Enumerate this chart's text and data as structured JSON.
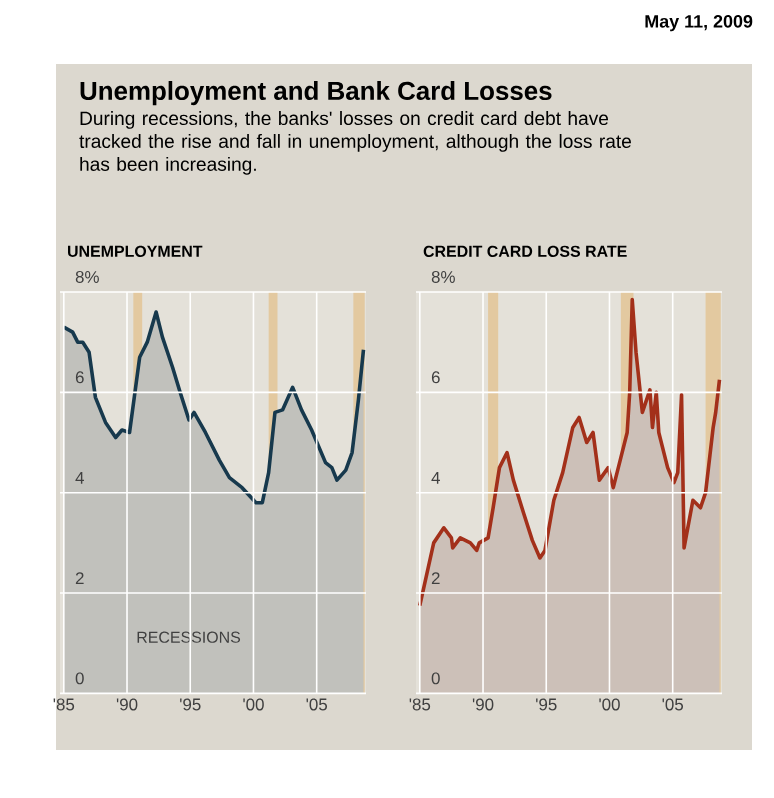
{
  "chart_data": [
    {
      "type": "area",
      "title": "Unemployment and Bank Card Losses",
      "subtitle": "During recessions, the banks' losses on credit card debt have tracked the rise and fall in unemployment, although the loss rate has been increasing.",
      "ylabel": "UNEMPLOYMENT",
      "annotations": [
        "May 11, 2009",
        "RECESSIONS"
      ],
      "x": [
        1985,
        1985.7,
        1986.1,
        1986.5,
        1987,
        1987.5,
        1988.3,
        1989.1,
        1989.6,
        1990.2,
        1991,
        1991.6,
        1992.3,
        1992.8,
        1993.6,
        1994.2,
        1994.9,
        1995.3,
        1996.2,
        1997.3,
        1998.1,
        1999.1,
        2000.2,
        2000.7,
        2001.2,
        2001.7,
        2002.3,
        2003.1,
        2003.8,
        2004.6,
        2005.7,
        2006.2,
        2006.6,
        2007.3,
        2007.8,
        2008.3,
        2008.7
      ],
      "series": [
        {
          "color": "#17394d",
          "values": [
            7.3,
            7.2,
            7.0,
            7.0,
            6.8,
            5.9,
            5.4,
            5.1,
            5.25,
            5.2,
            6.7,
            7.0,
            7.6,
            7.1,
            6.5,
            6.0,
            5.45,
            5.6,
            5.2,
            4.65,
            4.3,
            4.1,
            3.8,
            3.8,
            4.4,
            5.6,
            5.65,
            6.1,
            5.65,
            5.25,
            4.6,
            4.5,
            4.25,
            4.45,
            4.8,
            5.85,
            6.85
          ]
        }
      ],
      "bands": [
        {
          "axis": "x",
          "from": 1990.5,
          "to": 1991.2,
          "color": "#e3c9a0"
        },
        {
          "axis": "x",
          "from": 2001.2,
          "to": 2001.9,
          "color": "#e3c9a0"
        },
        {
          "axis": "x",
          "from": 2007.9,
          "to": 2008.8,
          "color": "#e3c9a0"
        }
      ],
      "xlim": [
        1984.7,
        2008.9
      ],
      "ylim": [
        0,
        8
      ],
      "xticks": [
        {
          "value": 1985,
          "label": "'85"
        },
        {
          "value": 1990,
          "label": "'90"
        },
        {
          "value": 1995,
          "label": "'95"
        },
        {
          "value": 2000,
          "label": "'00"
        },
        {
          "value": 2005,
          "label": "'05"
        }
      ],
      "yticks": [
        0,
        2,
        4,
        6,
        {
          "value": 8,
          "label": "8%"
        }
      ],
      "grid": true
    },
    {
      "type": "area",
      "ylabel": "CREDIT CARD LOSS RATE",
      "x": [
        1985,
        1986.1,
        1986.9,
        1987.5,
        1987.6,
        1988.2,
        1989,
        1989.5,
        1989.7,
        1990.4,
        1990.8,
        1991.3,
        1991.9,
        1992.4,
        1993.2,
        1993.9,
        1994.5,
        1994.9,
        1995.6,
        1996.3,
        1997.1,
        1997.6,
        1998.2,
        1998.7,
        1999.2,
        1999.9,
        2000.3,
        2000.9,
        2001.4,
        2001.6,
        2001.8,
        2002.1,
        2002.6,
        2003.2,
        2003.4,
        2003.7,
        2003.9,
        2004.6,
        2005.1,
        2005.4,
        2005.7,
        2005.9,
        2006.6,
        2007.2,
        2007.6,
        2008.2,
        2008.4,
        2008.7
      ],
      "series": [
        {
          "color": "#a3301a",
          "values": [
            1.75,
            3.0,
            3.3,
            3.1,
            2.9,
            3.1,
            3.0,
            2.85,
            3.0,
            3.1,
            3.7,
            4.5,
            4.8,
            4.25,
            3.6,
            3.05,
            2.7,
            2.85,
            3.85,
            4.4,
            5.3,
            5.5,
            5.0,
            5.2,
            4.25,
            4.5,
            4.1,
            4.7,
            5.2,
            6.0,
            7.85,
            6.8,
            5.6,
            6.05,
            5.3,
            6.0,
            5.2,
            4.5,
            4.2,
            4.4,
            5.95,
            2.9,
            3.85,
            3.7,
            4.0,
            5.3,
            5.6,
            6.25
          ]
        }
      ],
      "bands": [
        {
          "axis": "x",
          "from": 1990.4,
          "to": 1991.2,
          "color": "#e3c9a0"
        },
        {
          "axis": "x",
          "from": 2000.9,
          "to": 2001.9,
          "color": "#e3c9a0"
        },
        {
          "axis": "x",
          "from": 2007.6,
          "to": 2008.8,
          "color": "#e3c9a0"
        }
      ],
      "xlim": [
        1984.7,
        2008.9
      ],
      "ylim": [
        0,
        8
      ],
      "xticks": [
        {
          "value": 1985,
          "label": "'85"
        },
        {
          "value": 1990,
          "label": "'90"
        },
        {
          "value": 1995,
          "label": "'95"
        },
        {
          "value": 2000,
          "label": "'00"
        },
        {
          "value": 2005,
          "label": "'05"
        }
      ],
      "yticks": [
        0,
        2,
        4,
        6,
        {
          "value": 8,
          "label": "8%"
        }
      ],
      "grid": true
    }
  ]
}
